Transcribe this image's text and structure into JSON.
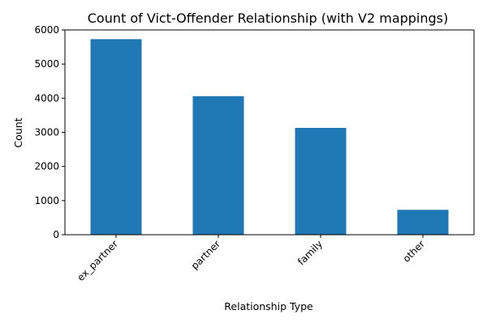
{
  "chart_data": {
    "type": "bar",
    "title": "Count of Vict-Offender Relationship (with V2 mappings)",
    "xlabel": "Relationship Type",
    "ylabel": "Count",
    "categories": [
      "ex_partner",
      "partner",
      "family",
      "other"
    ],
    "values": [
      5730,
      4060,
      3130,
      730
    ],
    "ylim": [
      0,
      6000
    ],
    "yticks": [
      0,
      1000,
      2000,
      3000,
      4000,
      5000,
      6000
    ],
    "ytick_labels": [
      "0",
      "1000",
      "2000",
      "3000",
      "4000",
      "5000",
      "6000"
    ],
    "xtick_rotation_deg": 45,
    "grid": false,
    "legend": "none",
    "bar_color": "#1f77b4"
  }
}
